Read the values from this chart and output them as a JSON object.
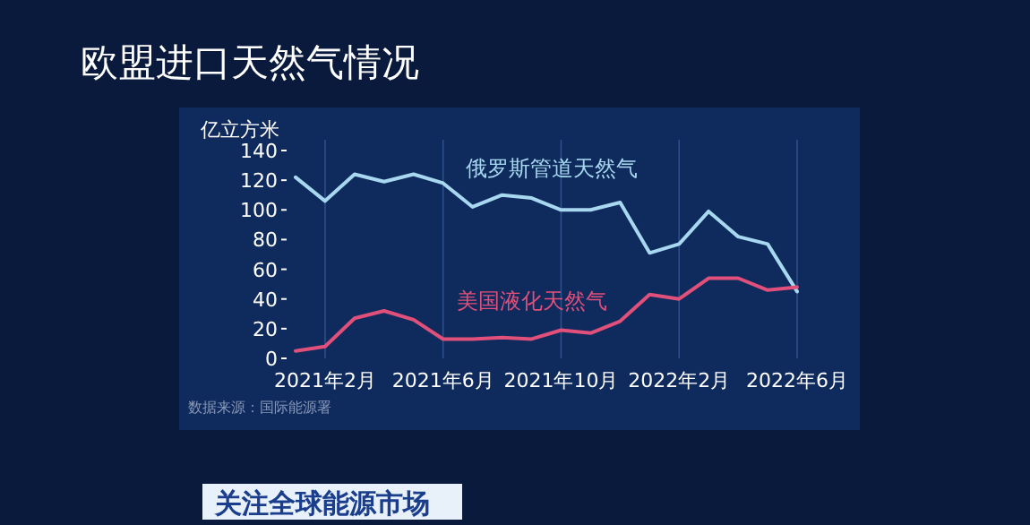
{
  "chart_data": {
    "type": "line",
    "title": "欧盟进口天然气情况",
    "ylabel": "亿立方米",
    "categories": [
      null,
      "2021年2月",
      null,
      null,
      null,
      "2021年6月",
      null,
      null,
      null,
      "2021年10月",
      null,
      null,
      null,
      "2022年2月",
      null,
      null,
      null,
      "2022年6月"
    ],
    "series": [
      {
        "name": "俄罗斯管道天然气",
        "color": "#a8d8f0",
        "values": [
          122,
          106,
          124,
          119,
          124,
          118,
          102,
          110,
          108,
          100,
          100,
          105,
          71,
          77,
          99,
          82,
          77,
          45
        ]
      },
      {
        "name": "美国液化天然气",
        "color": "#e0507a",
        "values": [
          5,
          8,
          27,
          32,
          26,
          13,
          13,
          14,
          13,
          19,
          17,
          25,
          43,
          40,
          54,
          54,
          46,
          48
        ]
      }
    ],
    "ylim": [
      0,
      140
    ],
    "yticks": [
      0,
      20,
      40,
      60,
      80,
      100,
      120,
      140
    ],
    "grid": "x",
    "annotations": [
      "数据来源：国际能源署",
      "关注全球能源市场"
    ]
  }
}
